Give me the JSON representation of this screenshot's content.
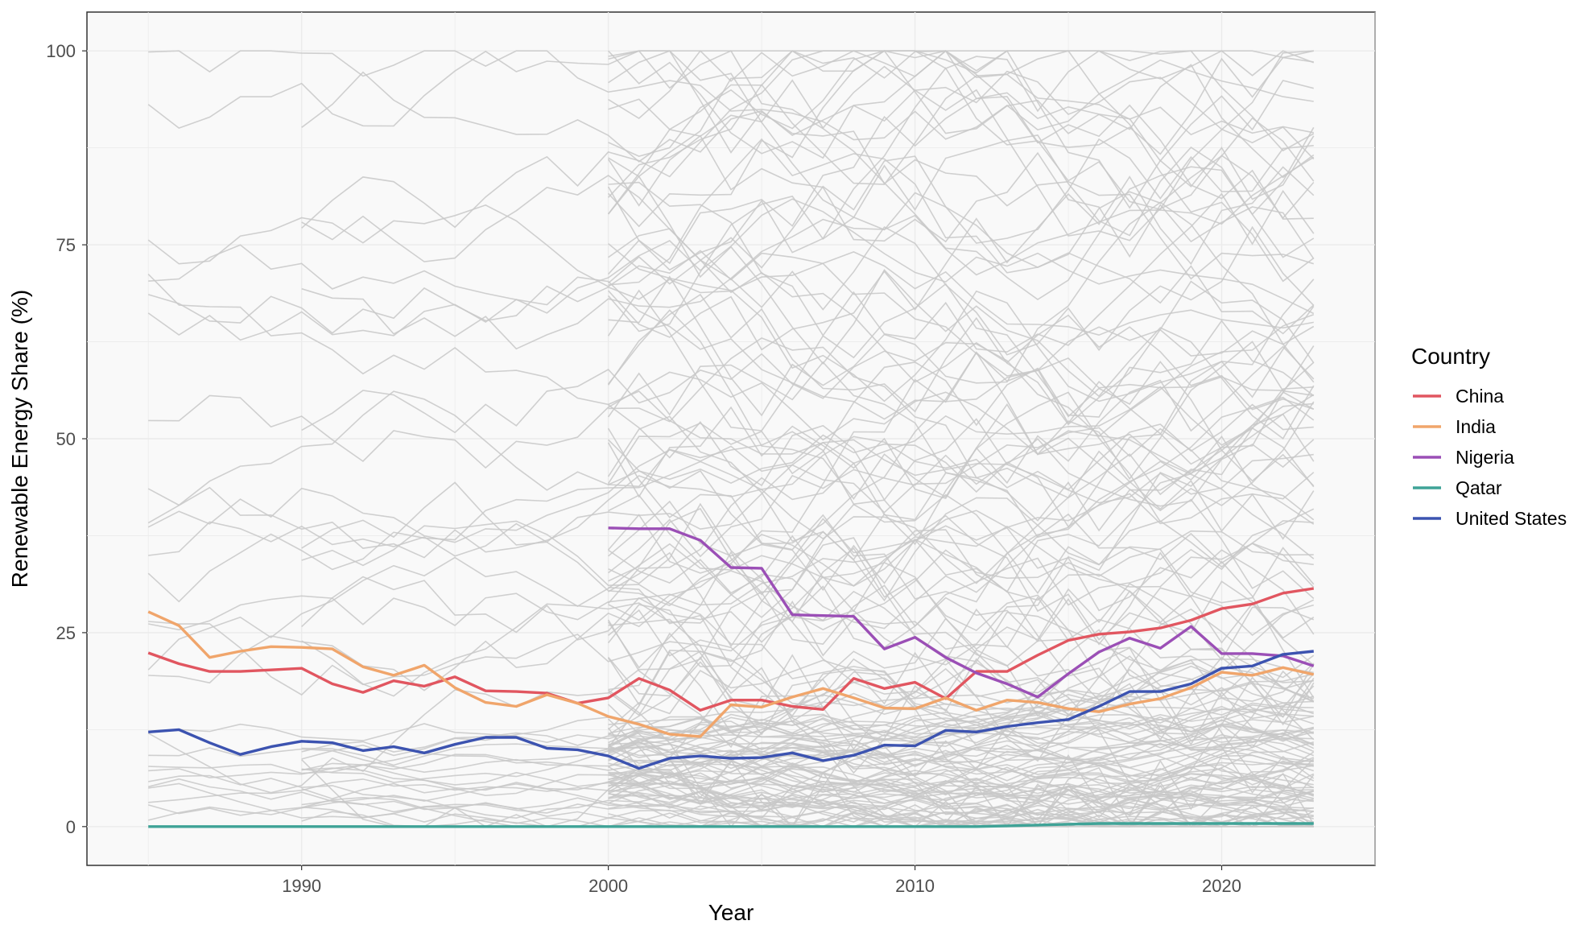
{
  "chart_data": {
    "type": "line",
    "title": "",
    "xlabel": "Year",
    "ylabel": "Renewable Energy Share (%)",
    "xlim": [
      1983,
      2025
    ],
    "ylim": [
      -5,
      105
    ],
    "x_ticks": [
      1990,
      2000,
      2010,
      2020
    ],
    "y_ticks": [
      0,
      25,
      50,
      75,
      100
    ],
    "grid": true,
    "legend": {
      "title": "Country",
      "position": "right"
    },
    "x": [
      1985,
      1986,
      1987,
      1988,
      1989,
      1990,
      1991,
      1992,
      1993,
      1994,
      1995,
      1996,
      1997,
      1998,
      1999,
      2000,
      2001,
      2002,
      2003,
      2004,
      2005,
      2006,
      2007,
      2008,
      2009,
      2010,
      2011,
      2012,
      2013,
      2014,
      2015,
      2016,
      2017,
      2018,
      2019,
      2020,
      2021,
      2022,
      2023
    ],
    "series": [
      {
        "name": "China",
        "color": "#e15660",
        "values": [
          22.4,
          21,
          20,
          20,
          20.2,
          20.4,
          18.4,
          17.3,
          18.8,
          18.1,
          19.3,
          17.5,
          17.4,
          17.2,
          15.9,
          16.6,
          19.1,
          17.6,
          15,
          16.3,
          16.3,
          15.5,
          15.1,
          19.1,
          17.8,
          18.6,
          16.5,
          20,
          20,
          22.1,
          24,
          24.8,
          25.1,
          25.6,
          26.6,
          28.1,
          28.7,
          30.1,
          30.7
        ]
      },
      {
        "name": "India",
        "color": "#f0a56b",
        "values": [
          27.7,
          25.9,
          21.8,
          22.6,
          23.2,
          23.1,
          22.9,
          20.6,
          19.5,
          20.8,
          17.9,
          16,
          15.5,
          17,
          15.9,
          14.2,
          13.2,
          11.9,
          11.6,
          15.7,
          15.4,
          16.7,
          17.8,
          16.6,
          15.3,
          15.2,
          16.6,
          15,
          16.3,
          16,
          15.2,
          14.8,
          15.8,
          16.5,
          17.9,
          19.9,
          19.5,
          20.5,
          19.6
        ]
      },
      {
        "name": "Nigeria",
        "color": "#9b4fb6",
        "values": [
          null,
          null,
          null,
          null,
          null,
          null,
          null,
          null,
          null,
          null,
          null,
          null,
          null,
          null,
          null,
          38.5,
          38.4,
          38.4,
          36.9,
          33.4,
          33.3,
          27.3,
          27.2,
          27.1,
          22.9,
          24.4,
          21.8,
          19.8,
          18.4,
          16.7,
          19.7,
          22.5,
          24.3,
          23,
          25.8,
          22.3,
          22.3,
          22,
          20.7
        ]
      },
      {
        "name": "Qatar",
        "color": "#3fa397",
        "values": [
          0,
          0,
          0,
          0,
          0,
          0,
          0,
          0,
          0,
          0,
          0,
          0,
          0,
          0,
          0,
          0,
          0,
          0,
          0,
          0,
          0,
          0,
          0,
          0,
          0,
          0,
          0,
          0,
          0.1,
          0.2,
          0.3,
          0.4,
          0.4,
          0.4,
          0.4,
          0.4,
          0.4,
          0.4,
          0.4
        ]
      },
      {
        "name": "United States",
        "color": "#3c53b0",
        "values": [
          12.2,
          12.5,
          10.8,
          9.3,
          10.3,
          11,
          10.8,
          9.8,
          10.3,
          9.5,
          10.6,
          11.5,
          11.5,
          10.1,
          9.9,
          9.1,
          7.5,
          8.8,
          9.1,
          8.8,
          8.9,
          9.5,
          8.5,
          9.2,
          10.5,
          10.4,
          12.4,
          12.2,
          12.9,
          13.4,
          13.8,
          15.5,
          17.4,
          17.4,
          18.4,
          20.4,
          20.7,
          22.2,
          22.6
        ]
      }
    ],
    "background_series_color": "#c8c8c8"
  }
}
